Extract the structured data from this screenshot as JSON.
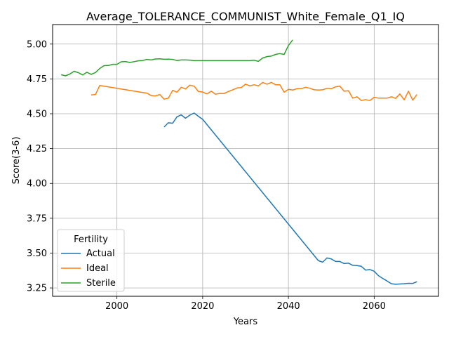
{
  "chart_data": {
    "type": "line",
    "title": "Average_TOLERANCE_COMMUNIST_White_Female_Q1_IQ",
    "xlabel": "Years",
    "ylabel": "Score(3-6)",
    "xlim": [
      1985,
      2075
    ],
    "ylim": [
      3.19,
      5.14
    ],
    "xticks": [
      2000,
      2020,
      2040,
      2060
    ],
    "yticks": [
      3.25,
      3.5,
      3.75,
      4.0,
      4.25,
      4.5,
      4.75,
      5.0
    ],
    "ytick_labels": [
      "3.25",
      "3.50",
      "3.75",
      "4.00",
      "4.25",
      "4.50",
      "4.75",
      "5.00"
    ],
    "grid": true,
    "legend": {
      "title": "Fertility",
      "position": "lower-left"
    },
    "series": [
      {
        "name": "Actual",
        "color": "#1f77b4",
        "points": [
          [
            2011,
            4.405
          ],
          [
            2012,
            4.435
          ],
          [
            2013,
            4.432
          ],
          [
            2014,
            4.478
          ],
          [
            2015,
            4.492
          ],
          [
            2016,
            4.468
          ],
          [
            2017,
            4.49
          ],
          [
            2018,
            4.505
          ],
          [
            2019,
            4.482
          ],
          [
            2020,
            4.46
          ],
          [
            2047,
            3.445
          ],
          [
            2048,
            3.435
          ],
          [
            2049,
            3.465
          ],
          [
            2050,
            3.458
          ],
          [
            2051,
            3.44
          ],
          [
            2052,
            3.44
          ],
          [
            2053,
            3.425
          ],
          [
            2054,
            3.428
          ],
          [
            2055,
            3.412
          ],
          [
            2056,
            3.41
          ],
          [
            2057,
            3.405
          ],
          [
            2058,
            3.378
          ],
          [
            2059,
            3.382
          ],
          [
            2060,
            3.37
          ],
          [
            2061,
            3.338
          ],
          [
            2062,
            3.318
          ],
          [
            2063,
            3.3
          ],
          [
            2064,
            3.28
          ],
          [
            2065,
            3.276
          ],
          [
            2066,
            3.278
          ],
          [
            2067,
            3.28
          ],
          [
            2068,
            3.283
          ],
          [
            2069,
            3.282
          ],
          [
            2070,
            3.295
          ]
        ]
      },
      {
        "name": "Ideal",
        "color": "#ff7f0e",
        "points": [
          [
            1994,
            4.635
          ],
          [
            1995,
            4.638
          ],
          [
            1996,
            4.703
          ],
          [
            1997,
            4.698
          ],
          [
            1998,
            4.693
          ],
          [
            1999,
            4.688
          ],
          [
            2000,
            4.683
          ],
          [
            2001,
            4.678
          ],
          [
            2002,
            4.673
          ],
          [
            2003,
            4.668
          ],
          [
            2004,
            4.663
          ],
          [
            2005,
            4.658
          ],
          [
            2006,
            4.653
          ],
          [
            2007,
            4.648
          ],
          [
            2008,
            4.63
          ],
          [
            2009,
            4.628
          ],
          [
            2010,
            4.638
          ],
          [
            2011,
            4.605
          ],
          [
            2012,
            4.612
          ],
          [
            2013,
            4.668
          ],
          [
            2014,
            4.655
          ],
          [
            2015,
            4.69
          ],
          [
            2016,
            4.678
          ],
          [
            2017,
            4.705
          ],
          [
            2018,
            4.698
          ],
          [
            2019,
            4.66
          ],
          [
            2020,
            4.656
          ],
          [
            2021,
            4.642
          ],
          [
            2022,
            4.662
          ],
          [
            2023,
            4.64
          ],
          [
            2024,
            4.646
          ],
          [
            2025,
            4.645
          ],
          [
            2026,
            4.66
          ],
          [
            2027,
            4.672
          ],
          [
            2028,
            4.685
          ],
          [
            2029,
            4.688
          ],
          [
            2030,
            4.712
          ],
          [
            2031,
            4.7
          ],
          [
            2032,
            4.708
          ],
          [
            2033,
            4.7
          ],
          [
            2034,
            4.725
          ],
          [
            2035,
            4.712
          ],
          [
            2036,
            4.725
          ],
          [
            2037,
            4.708
          ],
          [
            2038,
            4.708
          ],
          [
            2039,
            4.655
          ],
          [
            2040,
            4.675
          ],
          [
            2041,
            4.67
          ],
          [
            2042,
            4.68
          ],
          [
            2043,
            4.68
          ],
          [
            2044,
            4.69
          ],
          [
            2045,
            4.683
          ],
          [
            2046,
            4.672
          ],
          [
            2047,
            4.67
          ],
          [
            2048,
            4.672
          ],
          [
            2049,
            4.683
          ],
          [
            2050,
            4.68
          ],
          [
            2051,
            4.693
          ],
          [
            2052,
            4.698
          ],
          [
            2053,
            4.662
          ],
          [
            2054,
            4.665
          ],
          [
            2055,
            4.612
          ],
          [
            2056,
            4.622
          ],
          [
            2057,
            4.595
          ],
          [
            2058,
            4.602
          ],
          [
            2059,
            4.595
          ],
          [
            2060,
            4.618
          ],
          [
            2061,
            4.612
          ],
          [
            2062,
            4.612
          ],
          [
            2063,
            4.612
          ],
          [
            2064,
            4.622
          ],
          [
            2065,
            4.61
          ],
          [
            2066,
            4.642
          ],
          [
            2067,
            4.6
          ],
          [
            2068,
            4.662
          ],
          [
            2069,
            4.598
          ],
          [
            2070,
            4.638
          ]
        ]
      },
      {
        "name": "Sterile",
        "color": "#2ca02c",
        "points": [
          [
            1987,
            4.78
          ],
          [
            1988,
            4.772
          ],
          [
            1989,
            4.785
          ],
          [
            1990,
            4.805
          ],
          [
            1991,
            4.795
          ],
          [
            1992,
            4.778
          ],
          [
            1993,
            4.798
          ],
          [
            1994,
            4.783
          ],
          [
            1995,
            4.796
          ],
          [
            1996,
            4.825
          ],
          [
            1997,
            4.845
          ],
          [
            1998,
            4.846
          ],
          [
            1999,
            4.855
          ],
          [
            2000,
            4.855
          ],
          [
            2001,
            4.873
          ],
          [
            2002,
            4.875
          ],
          [
            2003,
            4.868
          ],
          [
            2004,
            4.874
          ],
          [
            2005,
            4.88
          ],
          [
            2006,
            4.882
          ],
          [
            2007,
            4.89
          ],
          [
            2008,
            4.886
          ],
          [
            2009,
            4.893
          ],
          [
            2010,
            4.894
          ],
          [
            2011,
            4.891
          ],
          [
            2012,
            4.892
          ],
          [
            2013,
            4.89
          ],
          [
            2014,
            4.882
          ],
          [
            2015,
            4.886
          ],
          [
            2016,
            4.886
          ],
          [
            2017,
            4.885
          ],
          [
            2018,
            4.881
          ],
          [
            2019,
            4.881
          ],
          [
            2020,
            4.881
          ],
          [
            2021,
            4.881
          ],
          [
            2022,
            4.881
          ],
          [
            2023,
            4.881
          ],
          [
            2024,
            4.881
          ],
          [
            2025,
            4.881
          ],
          [
            2026,
            4.881
          ],
          [
            2027,
            4.881
          ],
          [
            2028,
            4.881
          ],
          [
            2029,
            4.881
          ],
          [
            2030,
            4.881
          ],
          [
            2031,
            4.881
          ],
          [
            2032,
            4.884
          ],
          [
            2033,
            4.876
          ],
          [
            2034,
            4.9
          ],
          [
            2035,
            4.91
          ],
          [
            2036,
            4.914
          ],
          [
            2037,
            4.926
          ],
          [
            2038,
            4.932
          ],
          [
            2039,
            4.926
          ],
          [
            2040,
            4.99
          ],
          [
            2041,
            5.03
          ]
        ]
      }
    ]
  }
}
